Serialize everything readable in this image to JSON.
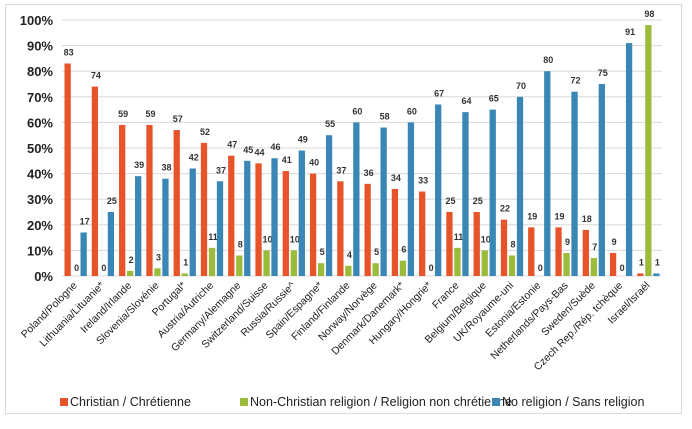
{
  "chart_data": {
    "type": "bar",
    "categories": [
      "Poland/Pologne",
      "Lithuania/Lituanie*",
      "Ireland/Irlande",
      "Slovenia/Slovénie",
      "Portugal*",
      "Austria/Autriche",
      "Germany/Alemagne",
      "Switzerland/Suisse",
      "Russia/Russie^",
      "Spain/Espagne*",
      "Finland/Finlande",
      "Norway/Norvège",
      "Denmark/Danemark*",
      "Hungary/Hongrie*",
      "France",
      "Belgium/Belgique",
      "UK/Royaume-uni",
      "Estonia/Estonie",
      "Netherlands/Pays-Bas",
      "Sweden/Suède",
      "Czech Rep./Rép. tchèque",
      "Israel/Israël"
    ],
    "series": [
      {
        "name": "Christian / Chrétienne",
        "color": "#e8542a",
        "values": [
          83,
          74,
          59,
          59,
          57,
          52,
          47,
          44,
          41,
          40,
          37,
          36,
          34,
          33,
          25,
          25,
          22,
          19,
          19,
          18,
          9,
          1
        ]
      },
      {
        "name": "Non-Christian religion / Religion non chrétienne",
        "color": "#9bbb3a",
        "values": [
          0,
          0,
          2,
          3,
          1,
          11,
          8,
          10,
          10,
          5,
          4,
          5,
          6,
          0,
          11,
          10,
          8,
          0,
          9,
          7,
          0,
          98
        ]
      },
      {
        "name": "No religion / Sans religion",
        "color": "#3a87b5",
        "values": [
          17,
          25,
          39,
          38,
          42,
          37,
          45,
          46,
          49,
          55,
          60,
          58,
          60,
          67,
          64,
          65,
          70,
          80,
          72,
          75,
          91,
          1
        ]
      }
    ],
    "yticks": [
      "0%",
      "10%",
      "20%",
      "30%",
      "40%",
      "50%",
      "60%",
      "70%",
      "80%",
      "90%",
      "100%"
    ],
    "ylim": [
      0,
      100
    ],
    "grid": true,
    "legend": "bottom",
    "title": "",
    "xlabel": "",
    "ylabel": ""
  }
}
